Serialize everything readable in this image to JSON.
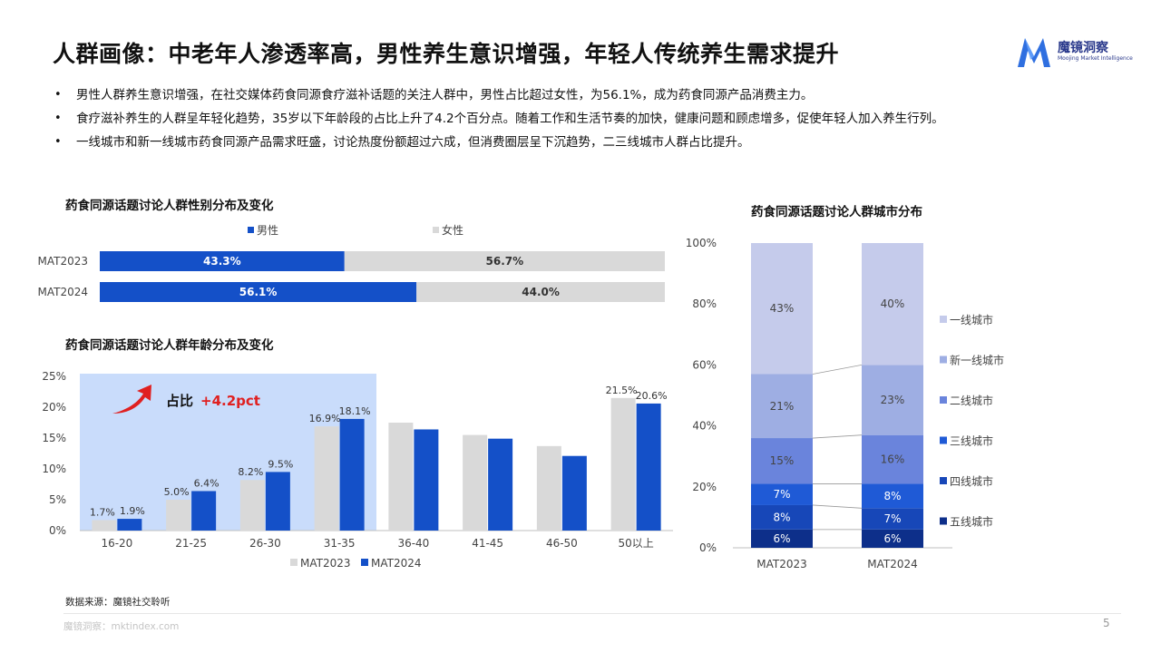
{
  "title": "人群画像：中老年人渗透率高，男性养生意识增强，年轻人传统养生需求提升",
  "logo": {
    "name": "魔镜洞察",
    "sub": "Moojing Market Intelligence",
    "color": "#2f6fe0"
  },
  "bullets": [
    "男性人群养生意识增强，在社交媒体药食同源食疗滋补话题的关注人群中，男性占比超过女性，为56.1%，成为药食同源产品消费主力。",
    "食疗滋补养生的人群呈年轻化趋势，35岁以下年龄段的占比上升了4.2个百分点。随着工作和生活节奏的加快，健康问题和顾虑增多，促使年轻人加入养生行列。",
    "一线城市和新一线城市药食同源产品需求旺盛，讨论热度份额超过六成，但消费圈层呈下沉趋势，二三线城市人群占比提升。"
  ],
  "gender_chart_title": "药食同源话题讨论人群性别分布及变化",
  "age_chart_title": "药食同源话题讨论人群年龄分布及变化",
  "city_chart_title": "药食同源话题讨论人群城市分布",
  "source": "数据来源：魔镜社交聆听",
  "footer": "魔镜洞察：mktindex.com",
  "page_number": "5",
  "colors": {
    "male": "#1450c8",
    "female": "#d9d9d9",
    "mat2023": "#d9d9d9",
    "mat2024": "#1450c8",
    "highlight": "#c9dcfb",
    "accent_red": "#e02020"
  },
  "chart_data": [
    {
      "id": "gender",
      "type": "bar",
      "orientation": "horizontal",
      "stacked": true,
      "categories": [
        "MAT2023",
        "MAT2024"
      ],
      "series": [
        {
          "name": "男性",
          "values": [
            43.3,
            56.1
          ],
          "labels": [
            "43.3%",
            "56.1%"
          ]
        },
        {
          "name": "女性",
          "values": [
            56.7,
            44.0
          ],
          "labels": [
            "56.7%",
            "44.0%"
          ]
        }
      ],
      "legend": "top"
    },
    {
      "id": "age",
      "type": "bar",
      "categories": [
        "16-20",
        "21-25",
        "26-30",
        "31-35",
        "36-40",
        "41-45",
        "46-50",
        "50以上"
      ],
      "series": [
        {
          "name": "MAT2023",
          "values": [
            1.7,
            5.0,
            8.2,
            16.9,
            17.5,
            15.5,
            13.7,
            21.5
          ],
          "labels": [
            "1.7%",
            "5.0%",
            "8.2%",
            "16.9%",
            "",
            "",
            "",
            "21.5%"
          ]
        },
        {
          "name": "MAT2024",
          "values": [
            1.9,
            6.4,
            9.5,
            18.1,
            16.4,
            14.9,
            12.1,
            20.6
          ],
          "labels": [
            "1.9%",
            "6.4%",
            "9.5%",
            "18.1%",
            "",
            "",
            "",
            "20.6%"
          ]
        }
      ],
      "yticks": [
        "0%",
        "5%",
        "10%",
        "15%",
        "20%",
        "25%"
      ],
      "ylim": [
        0,
        25
      ],
      "annotation": {
        "label": "占比",
        "value": "+4.2pct",
        "highlight_categories": [
          "16-20",
          "21-25",
          "26-30",
          "31-35"
        ]
      },
      "legend": "bottom"
    },
    {
      "id": "city",
      "type": "bar",
      "stacked": true,
      "percent": true,
      "categories": [
        "MAT2023",
        "MAT2024"
      ],
      "series": [
        {
          "name": "五线城市",
          "values": [
            6,
            6
          ],
          "labels": [
            "6%",
            "6%"
          ],
          "color": "#0d2f8a"
        },
        {
          "name": "四线城市",
          "values": [
            8,
            7
          ],
          "labels": [
            "8%",
            "7%"
          ],
          "color": "#1747b8"
        },
        {
          "name": "三线城市",
          "values": [
            7,
            8
          ],
          "labels": [
            "7%",
            "8%"
          ],
          "color": "#1f5ad6"
        },
        {
          "name": "二线城市",
          "values": [
            15,
            16
          ],
          "labels": [
            "15%",
            "16%"
          ],
          "color": "#6a84dc"
        },
        {
          "name": "新一线城市",
          "values": [
            21,
            23
          ],
          "labels": [
            "21%",
            "23%"
          ],
          "color": "#9eaee3"
        },
        {
          "name": "一线城市",
          "values": [
            43,
            40
          ],
          "labels": [
            "43%",
            "40%"
          ],
          "color": "#c5cbeb"
        }
      ],
      "yticks": [
        "0%",
        "20%",
        "40%",
        "60%",
        "80%",
        "100%"
      ],
      "ylim": [
        0,
        100
      ],
      "legend": "right"
    }
  ]
}
